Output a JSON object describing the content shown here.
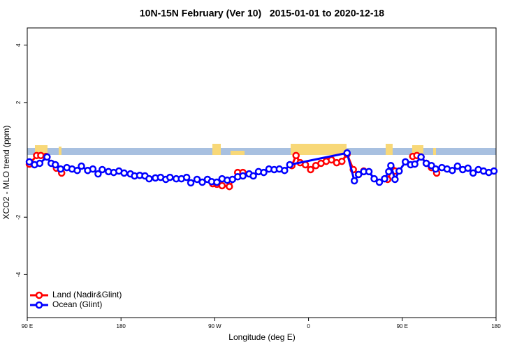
{
  "chart_data": {
    "type": "line",
    "title": "10N-15N February (Ver 10)   2015-01-01 to 2020-12-18",
    "x_label": "Longitude (deg E)",
    "y_label": "XCO2 - MLO trend (ppm)",
    "xlim": [
      90,
      540
    ],
    "xticks": [
      {
        "value": 90,
        "label": "90 E"
      },
      {
        "value": 180,
        "label": "180"
      },
      {
        "value": 270,
        "label": "90 W"
      },
      {
        "value": 360,
        "label": "0"
      },
      {
        "value": 450,
        "label": "90 E"
      },
      {
        "value": 540,
        "label": "180"
      }
    ],
    "ylim": [
      -5.5,
      4.6
    ],
    "yticks": [
      -4,
      -2,
      2,
      4
    ],
    "legend": "bottom-left",
    "series": [
      {
        "name": "Land (Nadir&Glint)",
        "color": "#ff0000",
        "x": [
          92,
          99,
          103,
          108,
          113,
          118,
          123,
          200,
          268,
          272,
          277,
          284,
          292,
          297,
          320,
          344,
          348,
          352,
          357,
          362,
          367,
          372,
          377,
          382,
          387,
          392,
          397,
          403,
          408,
          413,
          425,
          436,
          440,
          443,
          450,
          460,
          464,
          468,
          473,
          478,
          483
        ],
        "values": [
          -0.15,
          0.15,
          0.15,
          0.12,
          null,
          -0.29,
          -0.46,
          null,
          -0.83,
          -0.85,
          -0.9,
          -0.93,
          -0.44,
          -0.44,
          null,
          -0.2,
          0.15,
          -0.1,
          -0.17,
          -0.34,
          -0.2,
          -0.12,
          -0.05,
          0,
          -0.1,
          -0.05,
          0.2,
          -0.34,
          -0.51,
          -0.39,
          null,
          -0.68,
          -0.32,
          -0.39,
          null,
          0.12,
          0.15,
          0.1,
          -0.12,
          -0.27,
          -0.46
        ]
      },
      {
        "name": "Ocean (Glint)",
        "color": "#0000ff",
        "x": [
          92,
          97,
          102,
          109,
          113,
          117,
          122,
          128,
          133,
          138,
          142,
          148,
          153,
          158,
          162,
          168,
          173,
          178,
          183,
          189,
          193,
          198,
          203,
          207,
          213,
          218,
          223,
          227,
          233,
          238,
          243,
          247,
          253,
          258,
          263,
          267,
          272,
          277,
          282,
          287,
          292,
          297,
          303,
          307,
          312,
          317,
          322,
          327,
          332,
          337,
          342,
          397,
          404,
          408,
          413,
          418,
          423,
          428,
          433,
          437,
          439,
          443,
          447,
          453,
          458,
          462,
          468,
          473,
          478,
          482,
          488,
          493,
          498,
          503,
          508,
          513,
          518,
          523,
          528,
          533,
          538
        ],
        "values": [
          -0.07,
          -0.17,
          -0.12,
          0.1,
          -0.12,
          -0.17,
          -0.32,
          -0.27,
          -0.32,
          -0.37,
          -0.22,
          -0.37,
          -0.32,
          -0.49,
          -0.34,
          -0.41,
          -0.44,
          -0.39,
          -0.46,
          -0.49,
          -0.56,
          -0.54,
          -0.56,
          -0.66,
          -0.63,
          -0.61,
          -0.68,
          -0.61,
          -0.66,
          -0.66,
          -0.61,
          -0.8,
          -0.68,
          -0.78,
          -0.68,
          -0.76,
          -0.78,
          -0.66,
          -0.71,
          -0.68,
          -0.59,
          -0.56,
          -0.49,
          -0.56,
          -0.41,
          -0.44,
          -0.32,
          -0.34,
          -0.32,
          -0.37,
          -0.17,
          0.24,
          -0.73,
          -0.51,
          -0.41,
          -0.41,
          -0.66,
          -0.78,
          -0.66,
          -0.41,
          -0.2,
          -0.68,
          -0.39,
          -0.07,
          -0.17,
          -0.15,
          0.1,
          -0.12,
          -0.2,
          -0.32,
          -0.27,
          -0.32,
          -0.37,
          -0.22,
          -0.34,
          -0.29,
          -0.46,
          -0.34,
          -0.39,
          -0.44,
          -0.39
        ]
      }
    ]
  }
}
